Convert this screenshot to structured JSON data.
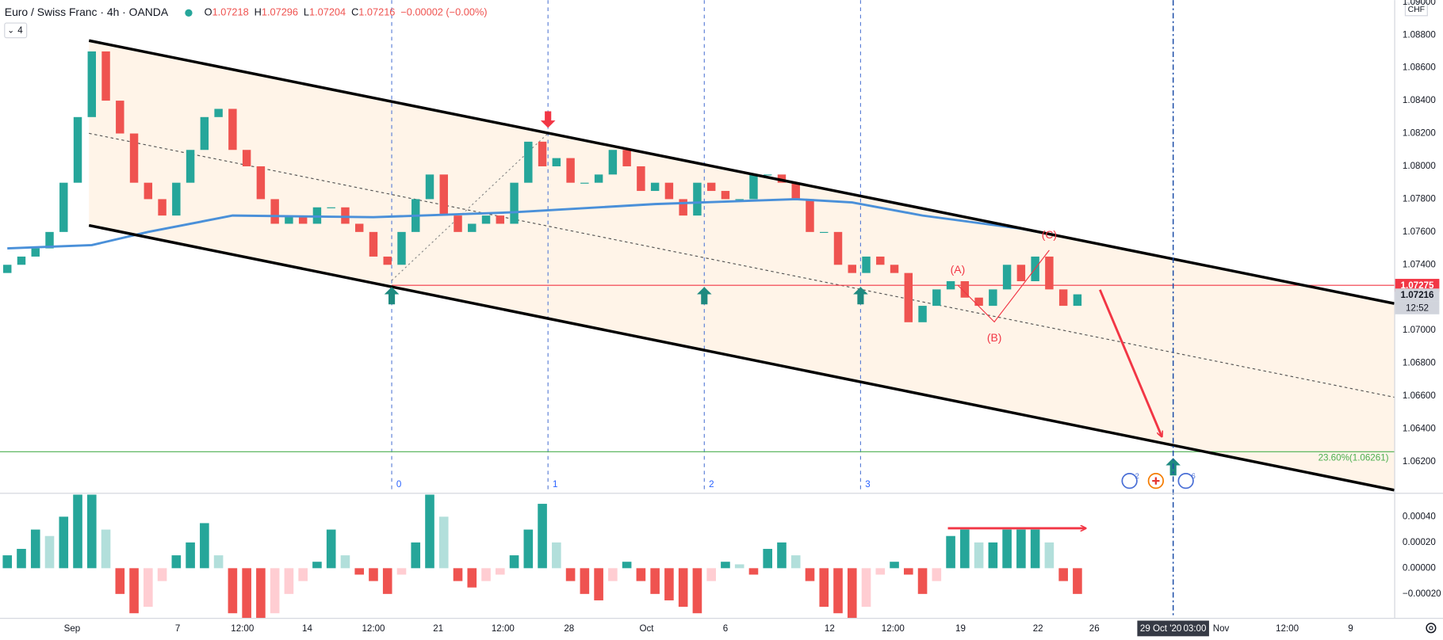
{
  "chart_data": {
    "type": "candlestick",
    "title": "Euro / Swiss Franc · 4h · OANDA",
    "ohlc_legend": [
      {
        "label": "O",
        "value": 1.07218
      },
      {
        "label": "H",
        "value": 1.07296
      },
      {
        "label": "L",
        "value": 1.07204
      },
      {
        "label": "C",
        "value": 1.07216
      }
    ],
    "change": "−0.00002 (−0.00%)",
    "interval_badge": 4,
    "currency": "CHF",
    "first_open": 1.0735,
    "closes": [
      1.074,
      1.0745,
      1.075,
      1.076,
      1.079,
      1.083,
      1.087,
      1.084,
      1.082,
      1.079,
      1.078,
      1.077,
      1.079,
      1.081,
      1.083,
      1.0835,
      1.081,
      1.08,
      1.078,
      1.0765,
      1.077,
      1.0765,
      1.0775,
      1.0775,
      1.0765,
      1.076,
      1.0745,
      1.074,
      1.076,
      1.078,
      1.0795,
      1.077,
      1.076,
      1.0765,
      1.077,
      1.0765,
      1.079,
      1.0815,
      1.08,
      1.0805,
      1.079,
      1.079,
      1.0795,
      1.081,
      1.08,
      1.0785,
      1.079,
      1.078,
      1.077,
      1.079,
      1.0785,
      1.078,
      1.078,
      1.0795,
      1.0795,
      1.079,
      1.078,
      1.076,
      1.076,
      1.074,
      1.0735,
      1.0745,
      1.074,
      1.0735,
      1.0705,
      1.0715,
      1.0725,
      1.073,
      1.072,
      1.0715,
      1.0725,
      1.074,
      1.073,
      1.0745,
      1.0725,
      1.0715,
      1.0722
    ],
    "up_color": "#26a69a",
    "down_color": "#ef5350",
    "xlim": [
      -0.52,
      98.5
    ],
    "ylim": [
      1.06016,
      1.09013
    ],
    "yticks": [
      {
        "value": 1.09,
        "label": "1.09000"
      },
      {
        "value": 1.088,
        "label": "1.08800"
      },
      {
        "value": 1.086,
        "label": "1.08600"
      },
      {
        "value": 1.084,
        "label": "1.08400"
      },
      {
        "value": 1.082,
        "label": "1.08200"
      },
      {
        "value": 1.08,
        "label": "1.08000"
      },
      {
        "value": 1.078,
        "label": "1.07800"
      },
      {
        "value": 1.076,
        "label": "1.07600"
      },
      {
        "value": 1.074,
        "label": "1.07400"
      },
      {
        "value": 1.07,
        "label": "1.07000"
      },
      {
        "value": 1.068,
        "label": "1.06800"
      },
      {
        "value": 1.066,
        "label": "1.06600"
      },
      {
        "value": 1.064,
        "label": "1.06400"
      },
      {
        "value": 1.062,
        "label": "1.06200"
      }
    ],
    "price_labels": [
      {
        "value": 1.07275,
        "label": "1.07275",
        "color": "#f23645"
      },
      {
        "value": 1.07216,
        "label": "1.07216",
        "color": "#d1d4dc"
      }
    ],
    "countdown": "12:52",
    "xticks": [
      {
        "value": 4.6,
        "label": "Sep"
      },
      {
        "value": 12.1,
        "label": "7"
      },
      {
        "value": 16.7,
        "label": "12:00"
      },
      {
        "value": 21.3,
        "label": "14"
      },
      {
        "value": 26.0,
        "label": "12:00"
      },
      {
        "value": 30.6,
        "label": "21"
      },
      {
        "value": 35.2,
        "label": "12:00"
      },
      {
        "value": 39.9,
        "label": "28"
      },
      {
        "value": 45.4,
        "label": "Oct"
      },
      {
        "value": 51.0,
        "label": "6"
      },
      {
        "value": 58.4,
        "label": "12"
      },
      {
        "value": 62.9,
        "label": "12:00"
      },
      {
        "value": 67.7,
        "label": "19"
      },
      {
        "value": 73.2,
        "label": "22"
      },
      {
        "value": 77.2,
        "label": "26"
      },
      {
        "value": 86.2,
        "label": "Nov"
      },
      {
        "value": 90.9,
        "label": "12:00"
      },
      {
        "value": 95.4,
        "label": "9"
      }
    ],
    "current_time": {
      "value": 82.8,
      "label": "29 Oct '20",
      "time": "03:00"
    },
    "moving_average": {
      "color": "#4a90d9",
      "x": [
        0,
        6,
        10,
        16,
        26,
        36,
        46,
        56,
        60,
        65,
        72,
        75
      ],
      "values": [
        1.075,
        1.0752,
        1.076,
        1.077,
        1.0769,
        1.0772,
        1.0777,
        1.078,
        1.0778,
        1.077,
        1.0762,
        1.0757
      ]
    },
    "channel": {
      "color": "#000000",
      "fill": "#fff4e8",
      "upper": [
        [
          5.8,
          1.08766
        ],
        [
          98.5,
          1.07164
        ]
      ],
      "lower": [
        [
          5.8,
          1.0764
        ],
        [
          98.5,
          1.06027
        ]
      ],
      "median": [
        [
          5.8,
          1.08201
        ],
        [
          98.5,
          1.06593
        ]
      ]
    },
    "levels": [
      {
        "value": 1.07275,
        "from": 27.3,
        "color": "#f23645"
      },
      {
        "value": 1.06261,
        "label": "23.60%(1.06261)",
        "color": "#4caf50"
      }
    ],
    "cycle_lines": [
      {
        "value": 27.3,
        "label": "0"
      },
      {
        "value": 38.4,
        "label": "1"
      },
      {
        "value": 49.5,
        "label": "2"
      },
      {
        "value": 60.6,
        "label": "3"
      }
    ],
    "up_arrows": [
      [
        27.3,
        1.07209
      ],
      [
        49.5,
        1.07209
      ],
      [
        60.6,
        1.07209
      ],
      [
        82.8,
        1.06167
      ]
    ],
    "down_arrow": [
      38.4,
      1.08285
    ],
    "fib_dash": [
      [
        27.3,
        1.07304
      ],
      [
        38.4,
        1.08201
      ]
    ],
    "wave": {
      "points": [
        [
          67.5,
          1.07276
        ],
        [
          70.1,
          1.07052
        ],
        [
          74.0,
          1.07489
        ]
      ],
      "labels": [
        "(A)",
        "(B)",
        "(C)"
      ]
    },
    "forecast_arrow": [
      [
        77.6,
        1.07248
      ],
      [
        82.0,
        1.06352
      ]
    ],
    "event_badges": [
      {
        "x": 79.7,
        "label": 2
      },
      {
        "x": 83.7,
        "label": 6
      }
    ],
    "oscillator": {
      "ylim": [
        -0.000386,
        0.000571
      ],
      "yticks": [
        {
          "value": 0.0004,
          "label": "0.00040"
        },
        {
          "value": 0.0002,
          "label": "0.00020"
        },
        {
          "value": 0,
          "label": "0.00000"
        },
        {
          "value": -0.0002,
          "label": "−0.00020"
        }
      ],
      "colors": {
        "pos_rising": "#26a69a",
        "pos_falling": "#b2dfdb",
        "neg_falling": "#ef5350",
        "neg_rising": "#ffcdd2"
      },
      "values": [
        0.0001,
        0.00015,
        0.0003,
        0.00025,
        0.0004,
        0.0006,
        0.0006,
        0.0003,
        -0.0002,
        -0.00035,
        -0.0003,
        -0.0001,
        0.0001,
        0.0002,
        0.00035,
        0.0001,
        -0.00035,
        -0.0004,
        -0.0004,
        -0.00035,
        -0.0002,
        -0.0001,
        5e-05,
        0.0003,
        0.0001,
        -5e-05,
        -0.0001,
        -0.0002,
        -5e-05,
        0.0002,
        0.0006,
        0.0004,
        -0.0001,
        -0.00015,
        -0.0001,
        -5e-05,
        0.0001,
        0.0003,
        0.0005,
        0.0002,
        -0.0001,
        -0.0002,
        -0.00025,
        -0.0001,
        5e-05,
        -0.0001,
        -0.0002,
        -0.00025,
        -0.0003,
        -0.00035,
        -0.0001,
        5e-05,
        3e-05,
        -5e-05,
        0.00015,
        0.0002,
        0.0001,
        -0.0001,
        -0.0003,
        -0.00035,
        -0.0004,
        -0.0003,
        -5e-05,
        5e-05,
        -5e-05,
        -0.0002,
        -0.0001,
        0.00025,
        0.0003,
        0.0002,
        0.0002,
        0.0003,
        0.0003,
        0.0003,
        0.0002,
        -0.0001,
        -0.0002
      ],
      "trend_arrow": [
        [
          66.8,
          0.00031
        ],
        [
          76.6,
          0.00031
        ]
      ],
      "trend_color": "#f23645"
    }
  }
}
